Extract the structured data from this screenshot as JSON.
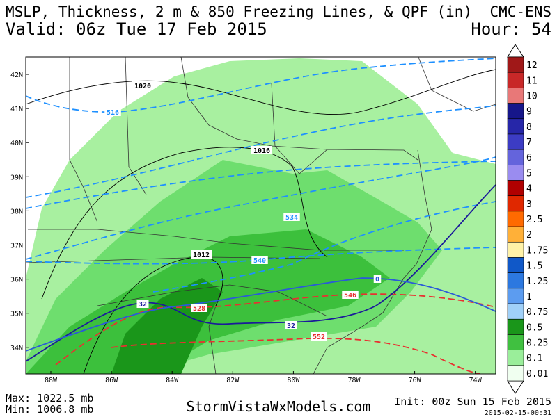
{
  "header": {
    "title": "MSLP, Thickness, 2 m & 850 Freezing Lines, & QPF (in)",
    "valid": "Valid: 06z Tue 17 Feb 2015",
    "model": "CMC-ENS",
    "hour": "Hour: 54"
  },
  "map": {
    "latitude_labels": [
      "42N",
      "41N",
      "40N",
      "39N",
      "38N",
      "37N",
      "36N",
      "35N",
      "34N"
    ],
    "longitude_labels": [
      "88W",
      "86W",
      "84W",
      "82W",
      "80W",
      "78W",
      "76W",
      "74W"
    ],
    "contour_labels": [
      "1020",
      "1016",
      "1012",
      "516",
      "534",
      "540",
      "528",
      "546",
      "552",
      "32",
      "32",
      "0"
    ]
  },
  "legend": {
    "labels": [
      "12",
      "11",
      "10",
      "9",
      "8",
      "7",
      "6",
      "5",
      "4",
      "3",
      "2.5",
      "2",
      "1.75",
      "1.5",
      "1.25",
      "1",
      "0.75",
      "0.5",
      "0.25",
      "0.1",
      "0.01"
    ],
    "colors": [
      "#a01818",
      "#c82828",
      "#e87878",
      "#16168a",
      "#2626a8",
      "#3c3cc4",
      "#6464dc",
      "#9a8cf0",
      "#b00000",
      "#e02800",
      "#ff6a00",
      "#ffb038",
      "#fff2a8",
      "#1058c8",
      "#2c78e0",
      "#5c9cf0",
      "#a0d0f8",
      "#1a961a",
      "#40c040",
      "#9aee9a",
      "#f0fff0"
    ]
  },
  "footer": {
    "max": "Max: 1022.5 mb",
    "min": "Min: 1006.8 mb",
    "site": "StormVistaWxModels.com",
    "init": "Init: 00z Sun 15 Feb 2015",
    "stamp": "2015-02-15-00:31"
  }
}
